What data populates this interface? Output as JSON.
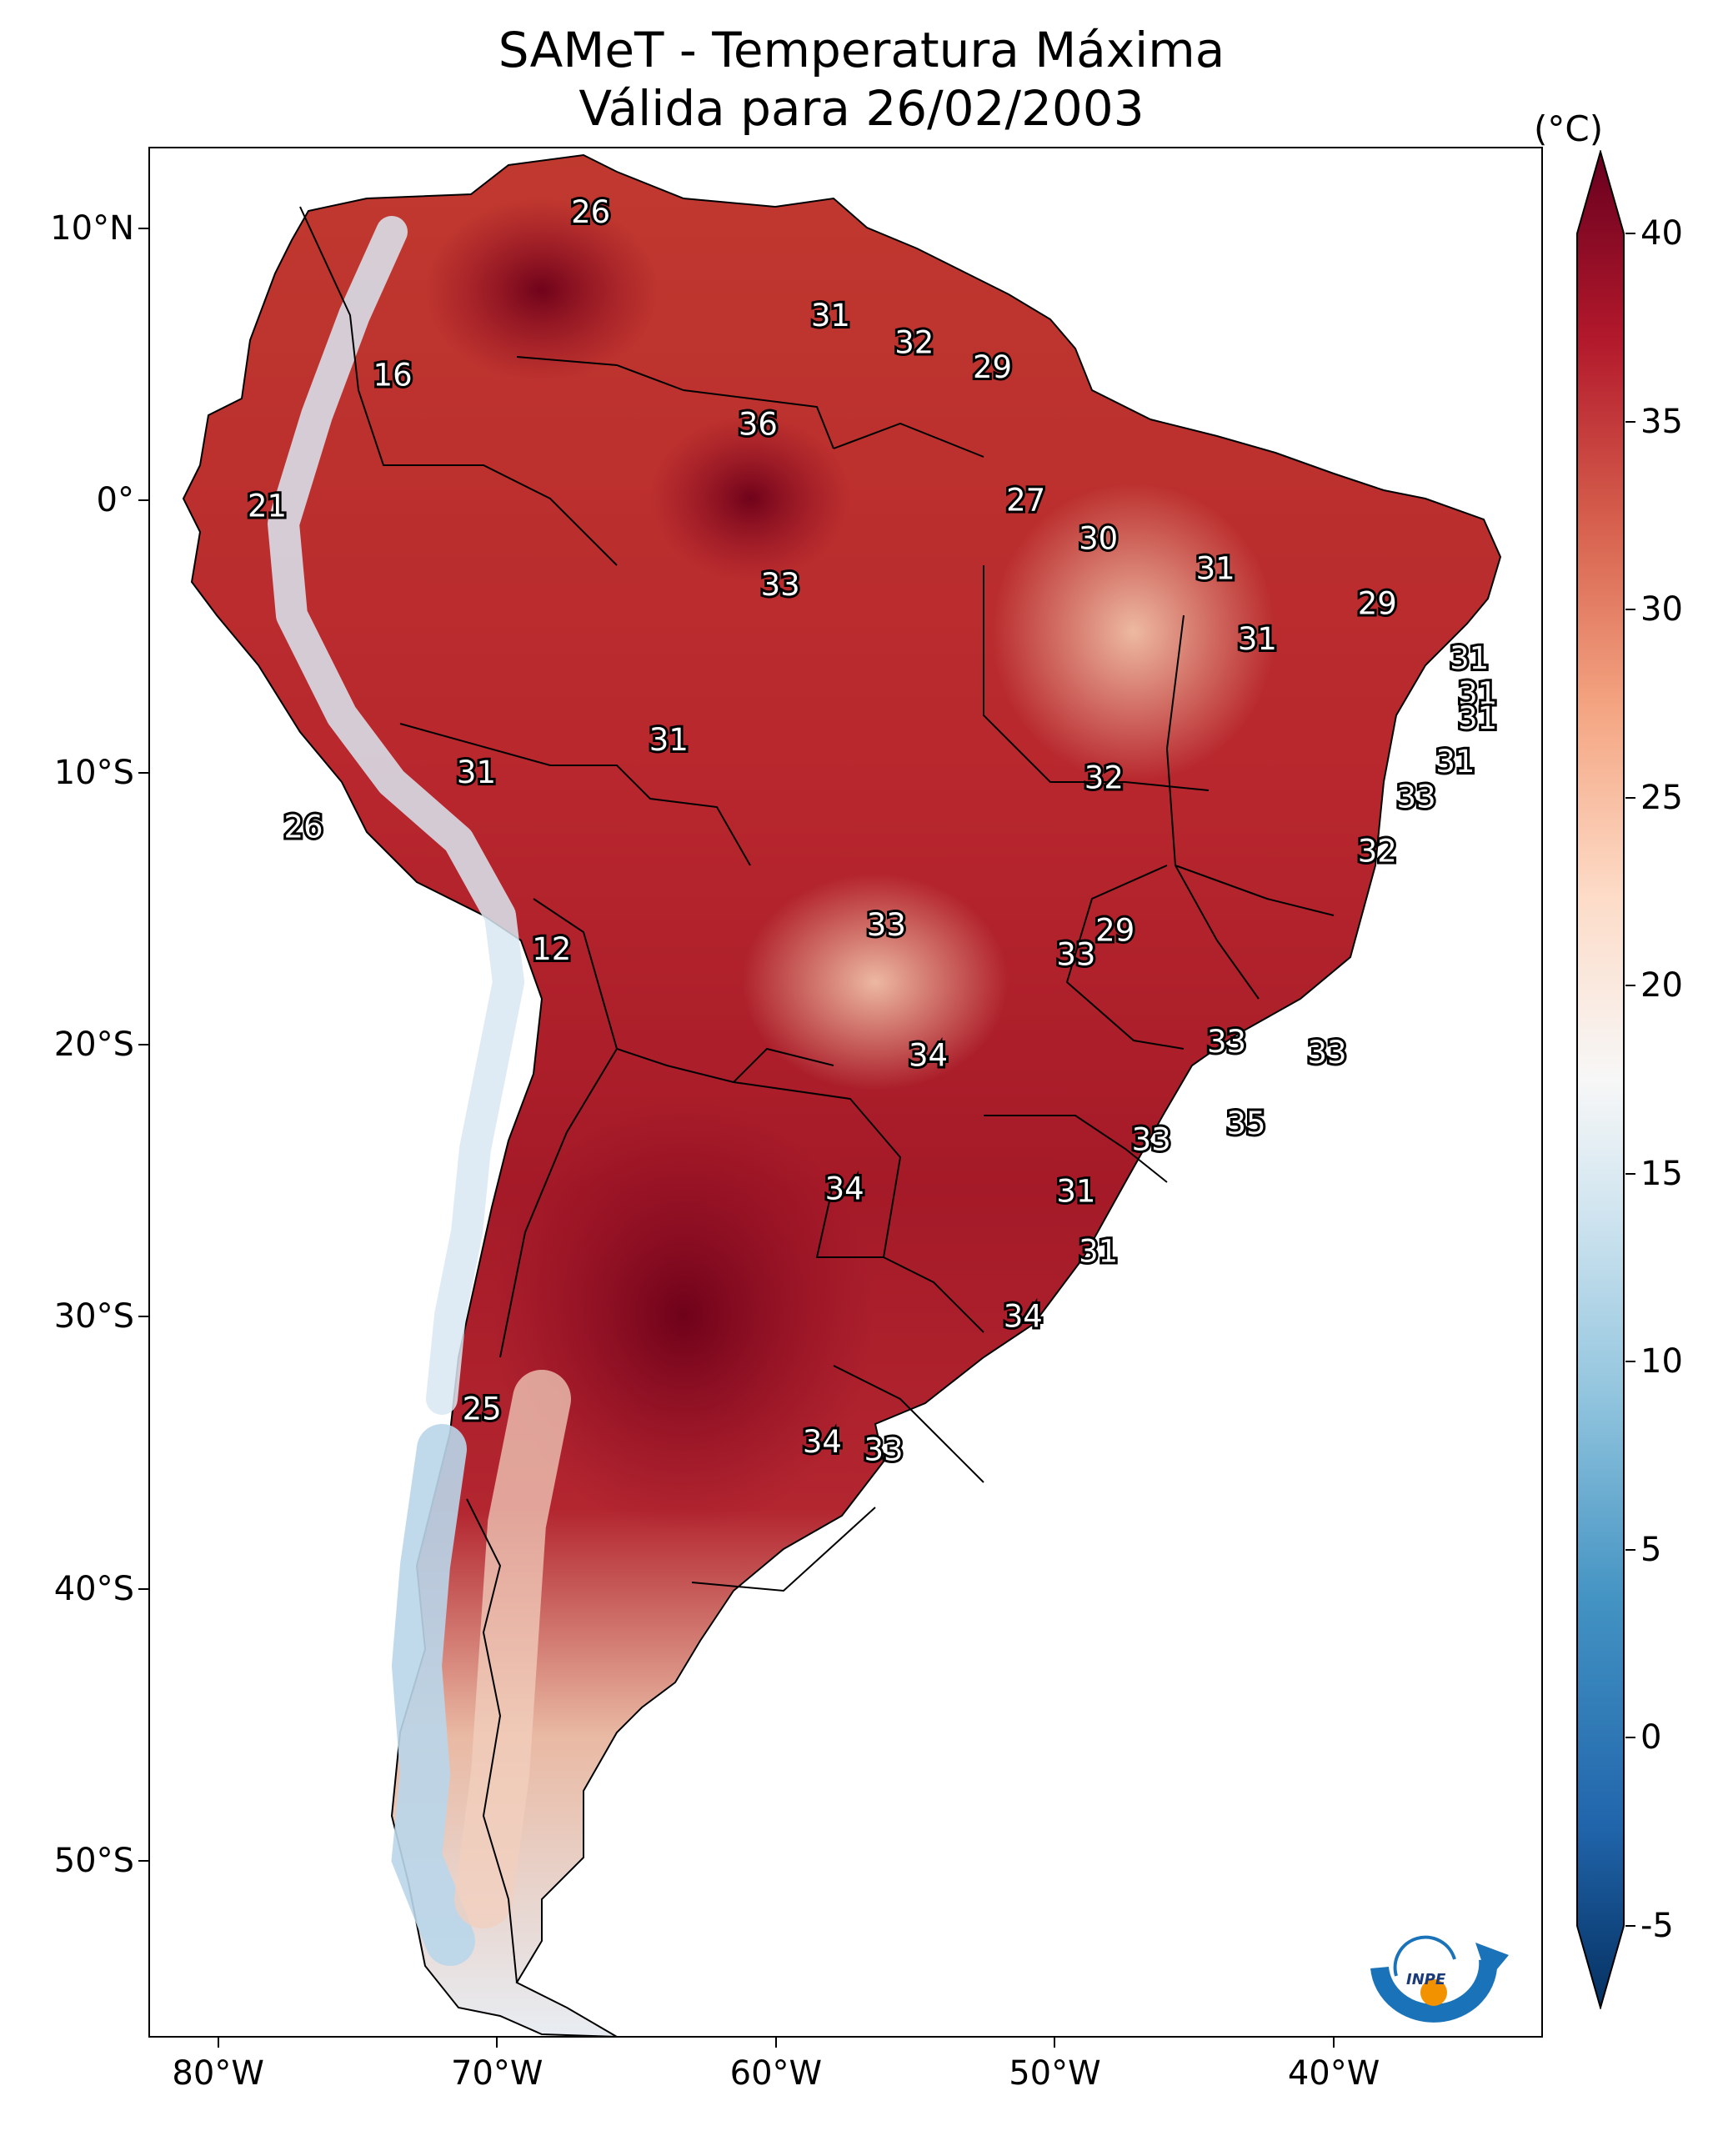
{
  "title": {
    "line1": "SAMeT - Temperatura Máxima",
    "line2": "Válida para 26/02/2003"
  },
  "map": {
    "lat_ticks": [
      {
        "value": 10,
        "label": "10°N"
      },
      {
        "value": 0,
        "label": "0°"
      },
      {
        "value": -10,
        "label": "10°S"
      },
      {
        "value": -20,
        "label": "20°S"
      },
      {
        "value": -30,
        "label": "30°S"
      },
      {
        "value": -40,
        "label": "40°S"
      },
      {
        "value": -50,
        "label": "50°S"
      }
    ],
    "lon_ticks": [
      {
        "value": -80,
        "label": "80°W"
      },
      {
        "value": -70,
        "label": "70°W"
      },
      {
        "value": -60,
        "label": "60°W"
      },
      {
        "value": -50,
        "label": "50°W"
      },
      {
        "value": -40,
        "label": "40°W"
      }
    ],
    "extent": {
      "lon_min": -82.5,
      "lon_max": -32.5,
      "lat_min": -56.5,
      "lat_max": 13.0
    },
    "station_values": [
      {
        "lon": -66.7,
        "lat": 10.6,
        "value": "26"
      },
      {
        "lon": -58.1,
        "lat": 6.8,
        "value": "31"
      },
      {
        "lon": -55.1,
        "lat": 5.8,
        "value": "32"
      },
      {
        "lon": -52.3,
        "lat": 4.9,
        "value": "29"
      },
      {
        "lon": -73.8,
        "lat": 4.6,
        "value": "16"
      },
      {
        "lon": -60.7,
        "lat": 2.8,
        "value": "36"
      },
      {
        "lon": -78.3,
        "lat": -0.2,
        "value": "21"
      },
      {
        "lon": -51.1,
        "lat": 0.0,
        "value": "27"
      },
      {
        "lon": -48.5,
        "lat": -1.4,
        "value": "30"
      },
      {
        "lon": -59.9,
        "lat": -3.1,
        "value": "33"
      },
      {
        "lon": -44.3,
        "lat": -2.5,
        "value": "31"
      },
      {
        "lon": -38.5,
        "lat": -3.8,
        "value": "29"
      },
      {
        "lon": -42.8,
        "lat": -5.1,
        "value": "31"
      },
      {
        "lon": -35.2,
        "lat": -5.8,
        "value": "31"
      },
      {
        "lon": -34.9,
        "lat": -7.1,
        "value": "31"
      },
      {
        "lon": -34.9,
        "lat": -8.0,
        "value": "31"
      },
      {
        "lon": -63.9,
        "lat": -8.8,
        "value": "31"
      },
      {
        "lon": -70.8,
        "lat": -10.0,
        "value": "31"
      },
      {
        "lon": -35.7,
        "lat": -9.6,
        "value": "31"
      },
      {
        "lon": -48.3,
        "lat": -10.2,
        "value": "32"
      },
      {
        "lon": -37.1,
        "lat": -10.9,
        "value": "33"
      },
      {
        "lon": -77.0,
        "lat": -12.0,
        "value": "26"
      },
      {
        "lon": -38.5,
        "lat": -12.9,
        "value": "32"
      },
      {
        "lon": -56.1,
        "lat": -15.6,
        "value": "33"
      },
      {
        "lon": -47.9,
        "lat": -15.8,
        "value": "29"
      },
      {
        "lon": -49.3,
        "lat": -16.7,
        "value": "33"
      },
      {
        "lon": -68.1,
        "lat": -16.5,
        "value": "12"
      },
      {
        "lon": -54.6,
        "lat": -20.4,
        "value": "34"
      },
      {
        "lon": -43.9,
        "lat": -19.9,
        "value": "33"
      },
      {
        "lon": -40.3,
        "lat": -20.3,
        "value": "33"
      },
      {
        "lon": -43.2,
        "lat": -22.9,
        "value": "35"
      },
      {
        "lon": -46.6,
        "lat": -23.5,
        "value": "33"
      },
      {
        "lon": -57.6,
        "lat": -25.3,
        "value": "34"
      },
      {
        "lon": -49.3,
        "lat": -25.4,
        "value": "31"
      },
      {
        "lon": -48.5,
        "lat": -27.6,
        "value": "31"
      },
      {
        "lon": -51.2,
        "lat": -30.0,
        "value": "34"
      },
      {
        "lon": -70.6,
        "lat": -33.4,
        "value": "25"
      },
      {
        "lon": -58.4,
        "lat": -34.6,
        "value": "34"
      },
      {
        "lon": -56.2,
        "lat": -34.9,
        "value": "33"
      }
    ]
  },
  "colorbar": {
    "unit": "(°C)",
    "min": -5,
    "max": 40,
    "ticks": [
      "40",
      "35",
      "30",
      "25",
      "20",
      "15",
      "10",
      "5",
      "0",
      "-5"
    ],
    "colors": [
      "#053061",
      "#2166ac",
      "#4393c3",
      "#92c5de",
      "#d1e5f0",
      "#f7f7f7",
      "#fddbc7",
      "#f4a582",
      "#d6604d",
      "#b2182b",
      "#67001f"
    ]
  },
  "logo": {
    "text": "INPE"
  }
}
